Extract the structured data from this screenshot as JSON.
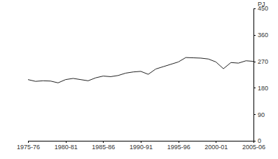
{
  "chart_data": {
    "type": "line",
    "y_label": "PJ",
    "categories": [
      "1975-76",
      null,
      null,
      null,
      null,
      "1980-81",
      null,
      null,
      null,
      null,
      "1985-86",
      null,
      null,
      null,
      null,
      "1990-91",
      null,
      null,
      null,
      null,
      "1995-96",
      null,
      null,
      null,
      null,
      "2000-01",
      null,
      null,
      null,
      null,
      "2005-06"
    ],
    "values": [
      208,
      202,
      204,
      203,
      197,
      208,
      212,
      208,
      204,
      214,
      220,
      218,
      222,
      230,
      234,
      236,
      226,
      244,
      252,
      260,
      268,
      283,
      282,
      281,
      278,
      268,
      245,
      266,
      264,
      272,
      270
    ],
    "color": "#222222",
    "ylim": [
      0,
      450
    ],
    "yticks": [
      0,
      90,
      180,
      270,
      360,
      450
    ],
    "grid": false
  }
}
